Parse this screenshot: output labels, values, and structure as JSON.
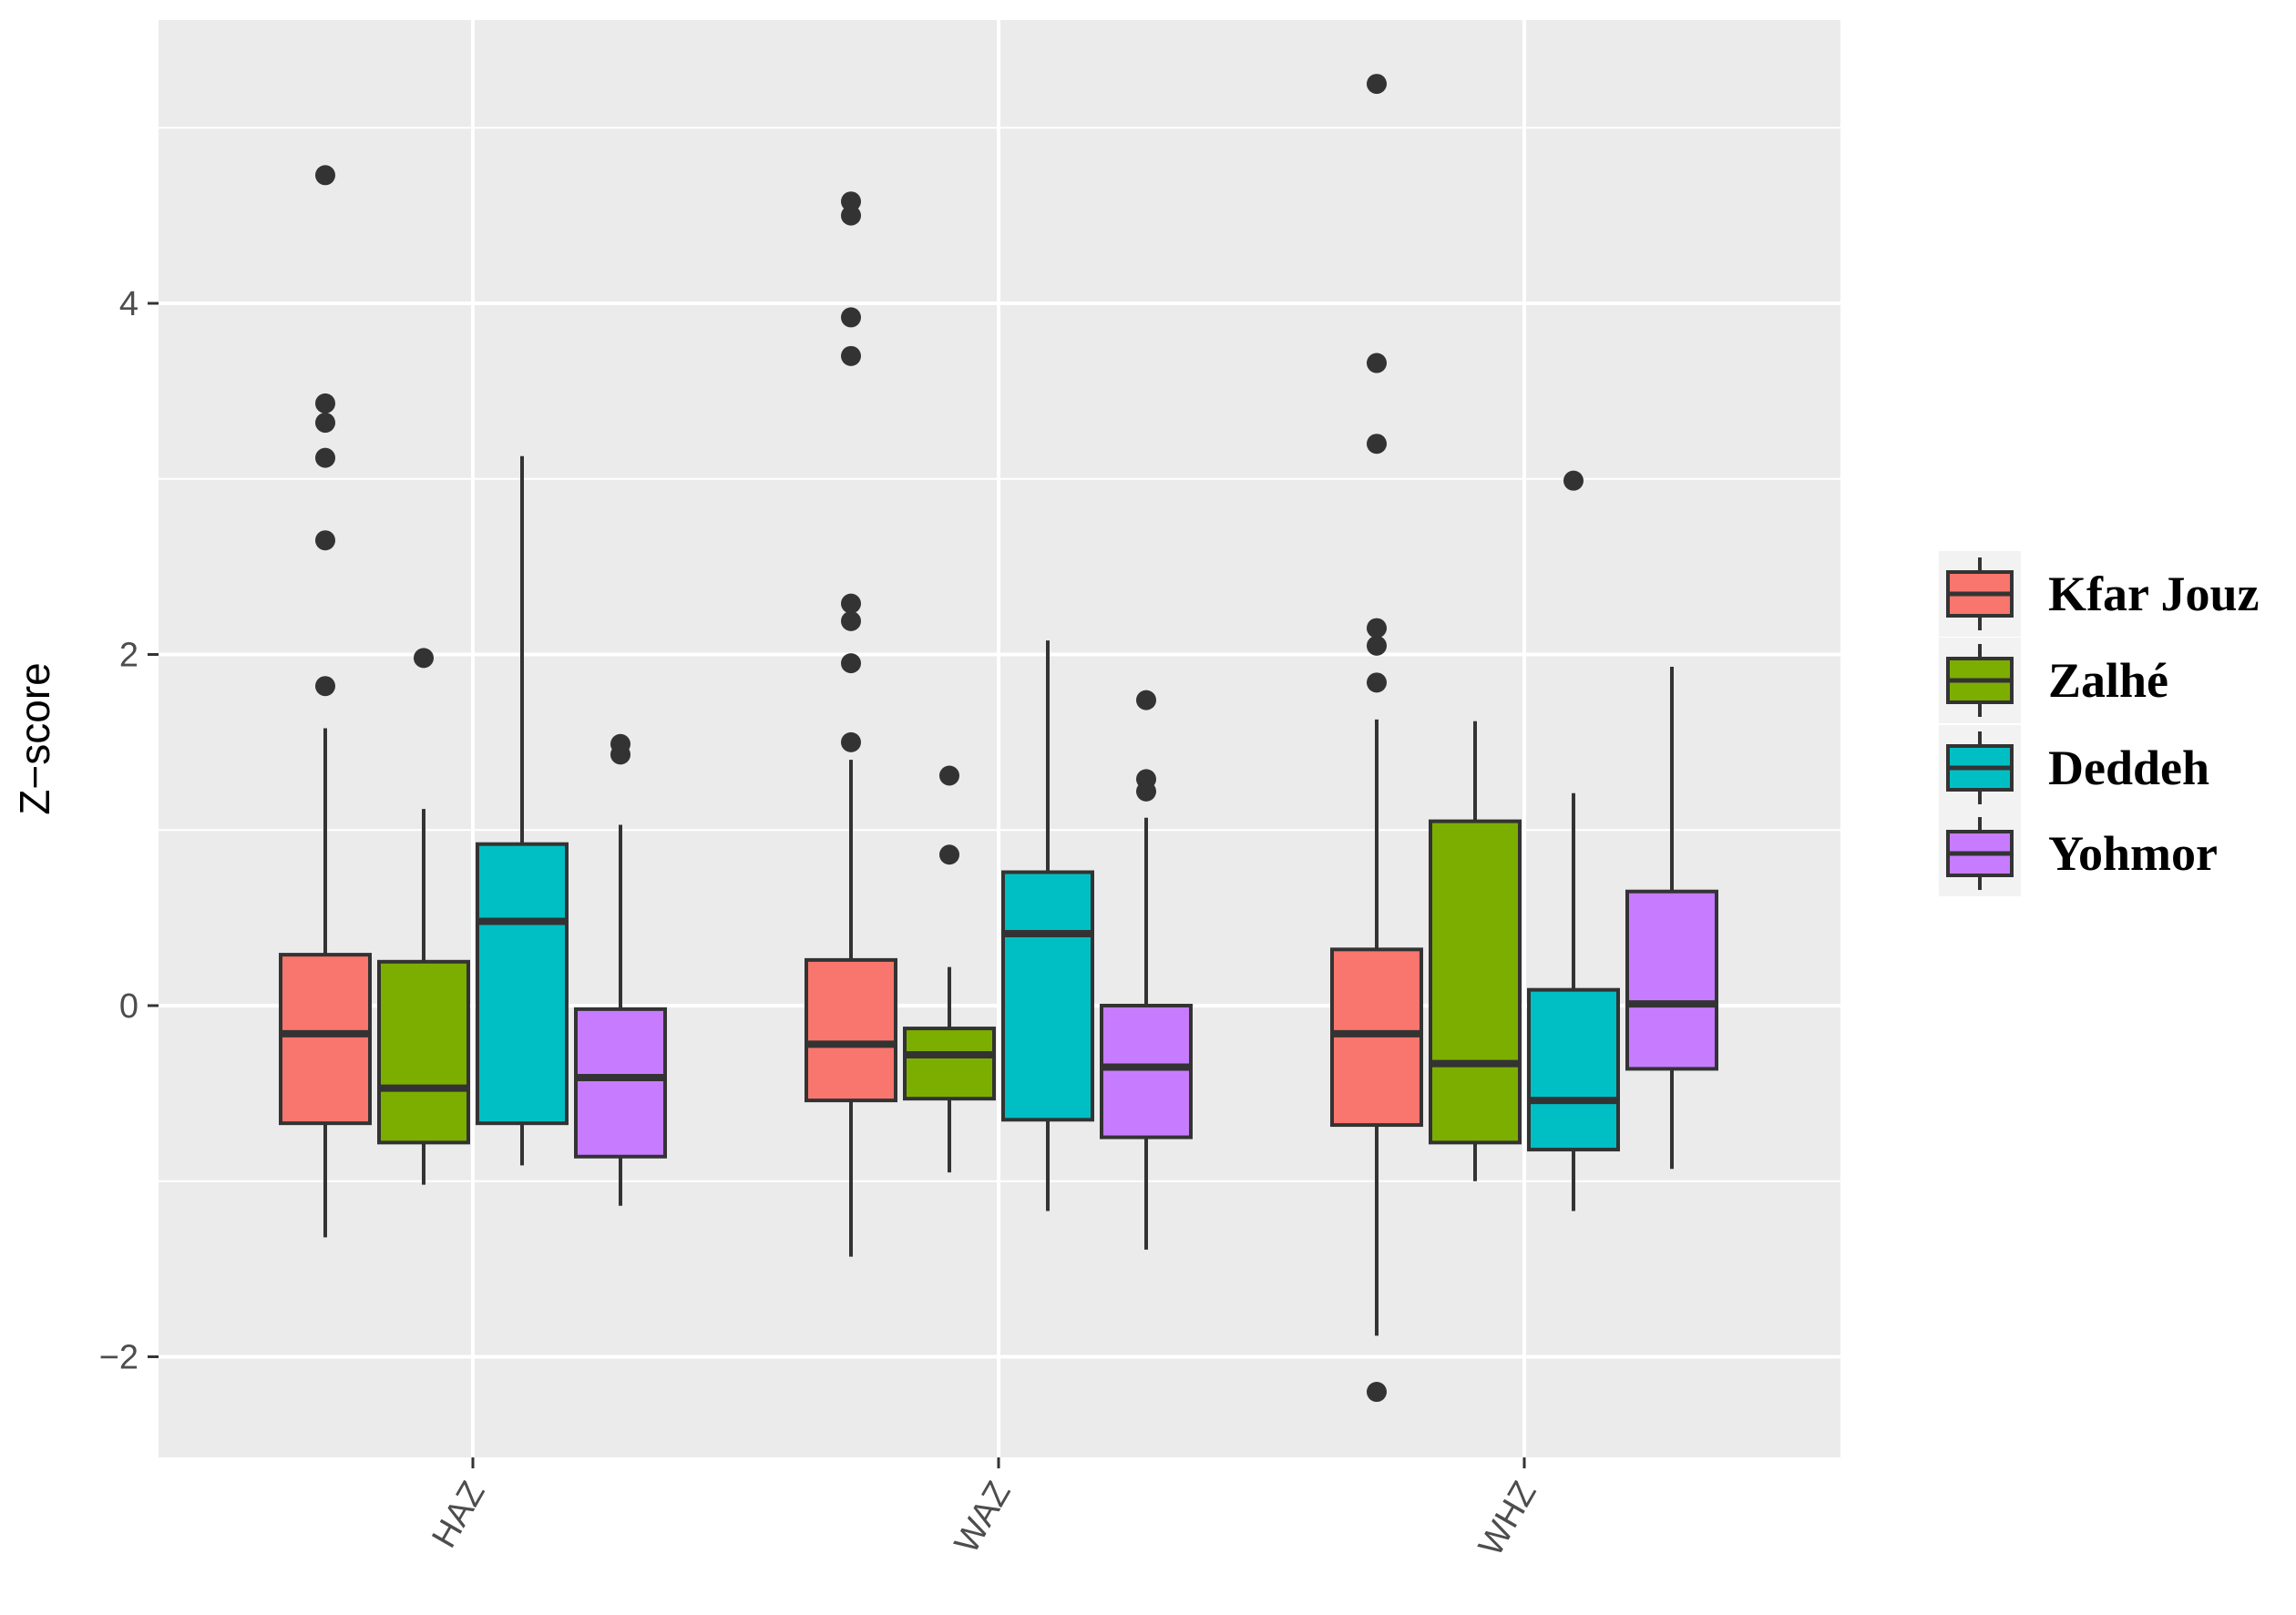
{
  "chart_data": {
    "type": "boxplot",
    "title": "",
    "xlabel": "",
    "ylabel": "Z−score",
    "ylim": [
      -2.6,
      5.6
    ],
    "yticks": [
      -2,
      0,
      2,
      4
    ],
    "ytick_labels": [
      "−2",
      "0",
      "2",
      "4"
    ],
    "grid": true,
    "legend_position": "right",
    "categories": [
      "HAZ",
      "WAZ",
      "WHZ"
    ],
    "series": [
      {
        "name": "Kfar Jouz",
        "color": "#F8766D",
        "boxes": [
          {
            "category": "HAZ",
            "q1": -0.67,
            "median": -0.16,
            "q3": 0.29,
            "whisker_low": -1.32,
            "whisker_high": 1.58,
            "outliers": [
              1.82,
              2.65,
              3.12,
              3.32,
              3.43,
              4.73
            ]
          },
          {
            "category": "WAZ",
            "q1": -0.54,
            "median": -0.22,
            "q3": 0.26,
            "whisker_low": -1.43,
            "whisker_high": 1.4,
            "outliers": [
              1.5,
              1.95,
              2.19,
              2.29,
              3.7,
              3.92,
              4.5,
              4.58
            ]
          },
          {
            "category": "WHZ",
            "q1": -0.68,
            "median": -0.16,
            "q3": 0.32,
            "whisker_low": -1.88,
            "whisker_high": 1.63,
            "outliers": [
              -2.2,
              1.84,
              2.05,
              2.15,
              3.2,
              3.66,
              5.25
            ]
          }
        ]
      },
      {
        "name": "Zalhé",
        "color": "#7CAE00",
        "boxes": [
          {
            "category": "HAZ",
            "q1": -0.78,
            "median": -0.47,
            "q3": 0.25,
            "whisker_low": -1.02,
            "whisker_high": 1.12,
            "outliers": [
              1.98
            ]
          },
          {
            "category": "WAZ",
            "q1": -0.53,
            "median": -0.28,
            "q3": -0.13,
            "whisker_low": -0.95,
            "whisker_high": 0.22,
            "outliers": [
              0.86,
              1.31
            ]
          },
          {
            "category": "WHZ",
            "q1": -0.78,
            "median": -0.33,
            "q3": 1.05,
            "whisker_low": -1.0,
            "whisker_high": 1.62,
            "outliers": []
          }
        ]
      },
      {
        "name": "Deddeh",
        "color": "#00BFC4",
        "boxes": [
          {
            "category": "HAZ",
            "q1": -0.67,
            "median": 0.48,
            "q3": 0.92,
            "whisker_low": -0.91,
            "whisker_high": 3.13,
            "outliers": []
          },
          {
            "category": "WAZ",
            "q1": -0.65,
            "median": 0.41,
            "q3": 0.76,
            "whisker_low": -1.17,
            "whisker_high": 2.08,
            "outliers": []
          },
          {
            "category": "WHZ",
            "q1": -0.82,
            "median": -0.54,
            "q3": 0.09,
            "whisker_low": -1.17,
            "whisker_high": 1.21,
            "outliers": [
              2.99
            ]
          }
        ]
      },
      {
        "name": "Yohmor",
        "color": "#C77CFF",
        "boxes": [
          {
            "category": "HAZ",
            "q1": -0.86,
            "median": -0.41,
            "q3": -0.02,
            "whisker_low": -1.14,
            "whisker_high": 1.03,
            "outliers": [
              1.43,
              1.49
            ]
          },
          {
            "category": "WAZ",
            "q1": -0.75,
            "median": -0.35,
            "q3": 0.0,
            "whisker_low": -1.39,
            "whisker_high": 1.07,
            "outliers": [
              1.22,
              1.29,
              1.74
            ]
          },
          {
            "category": "WHZ",
            "q1": -0.36,
            "median": 0.01,
            "q3": 0.65,
            "whisker_low": -0.93,
            "whisker_high": 1.93,
            "outliers": []
          }
        ]
      }
    ]
  }
}
